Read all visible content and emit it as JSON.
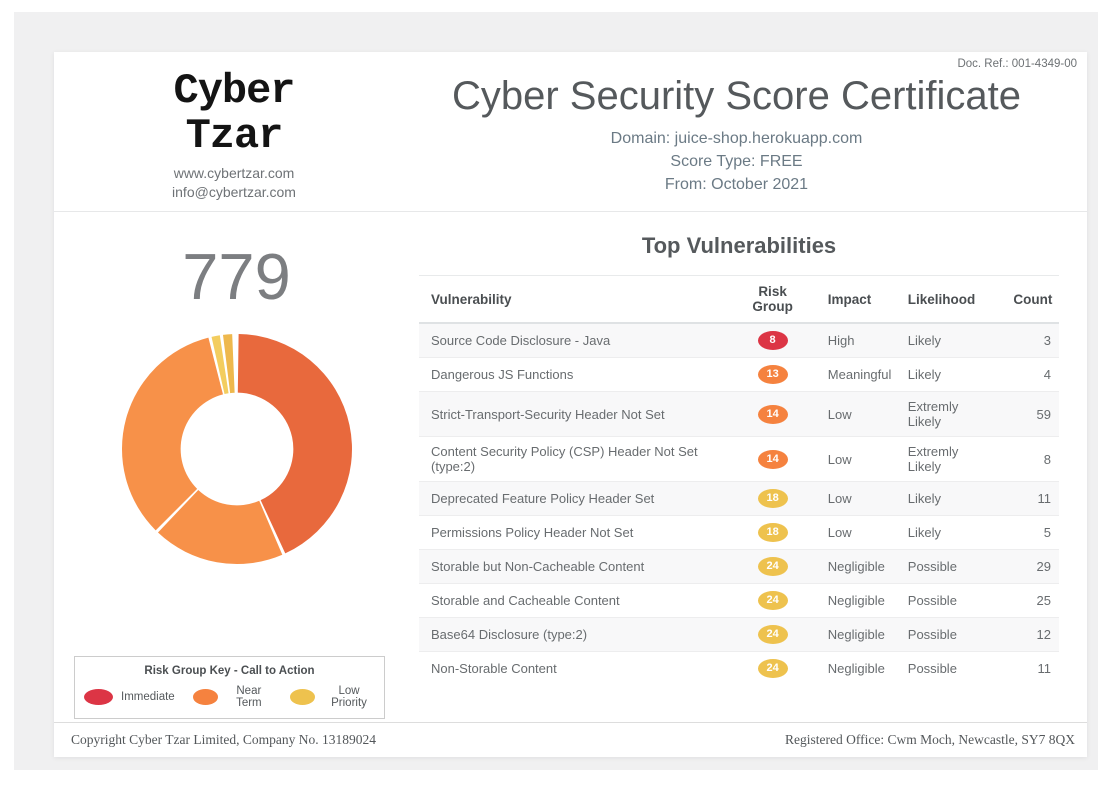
{
  "header": {
    "doc_ref": "Doc. Ref.: 001-4349-00",
    "brand": {
      "name_line1": "Cyber",
      "name_line2": "Tzar",
      "website": "www.cybertzar.com",
      "email": "info@cybertzar.com"
    },
    "title": "Cyber Security Score Certificate",
    "domain_line": "Domain: juice-shop.herokuapp.com",
    "score_type_line": "Score Type: FREE",
    "from_line": "From: October 2021"
  },
  "score": {
    "value": "779"
  },
  "vulnerabilities": {
    "title": "Top Vulnerabilities",
    "columns": [
      "Vulnerability",
      "Risk Group",
      "Impact",
      "Likelihood",
      "Count"
    ],
    "rows": [
      {
        "vulnerability": "Source Code Disclosure - Java",
        "risk_group": "8",
        "risk_color": "#dc3545",
        "impact": "High",
        "likelihood": "Likely",
        "count": "3"
      },
      {
        "vulnerability": "Dangerous JS Functions",
        "risk_group": "13",
        "risk_color": "#f5823f",
        "impact": "Meaningful",
        "likelihood": "Likely",
        "count": "4"
      },
      {
        "vulnerability": "Strict-Transport-Security Header Not Set",
        "risk_group": "14",
        "risk_color": "#f5823f",
        "impact": "Low",
        "likelihood": "Extremly Likely",
        "count": "59"
      },
      {
        "vulnerability": "Content Security Policy (CSP) Header Not Set (type:2)",
        "risk_group": "14",
        "risk_color": "#f5823f",
        "impact": "Low",
        "likelihood": "Extremly Likely",
        "count": "8"
      },
      {
        "vulnerability": "Deprecated Feature Policy Header Set",
        "risk_group": "18",
        "risk_color": "#eec24e",
        "impact": "Low",
        "likelihood": "Likely",
        "count": "11"
      },
      {
        "vulnerability": "Permissions Policy Header Not Set",
        "risk_group": "18",
        "risk_color": "#eec24e",
        "impact": "Low",
        "likelihood": "Likely",
        "count": "5"
      },
      {
        "vulnerability": "Storable but Non-Cacheable Content",
        "risk_group": "24",
        "risk_color": "#eec24e",
        "impact": "Negligible",
        "likelihood": "Possible",
        "count": "29"
      },
      {
        "vulnerability": "Storable and Cacheable Content",
        "risk_group": "24",
        "risk_color": "#eec24e",
        "impact": "Negligible",
        "likelihood": "Possible",
        "count": "25"
      },
      {
        "vulnerability": "Base64 Disclosure (type:2)",
        "risk_group": "24",
        "risk_color": "#eec24e",
        "impact": "Negligible",
        "likelihood": "Possible",
        "count": "12"
      },
      {
        "vulnerability": "Non-Storable Content",
        "risk_group": "24",
        "risk_color": "#eec24e",
        "impact": "Negligible",
        "likelihood": "Possible",
        "count": "11"
      }
    ]
  },
  "legend": {
    "title": "Risk Group Key - Call to Action",
    "items": [
      {
        "label": "Immediate",
        "color": "#dc3545"
      },
      {
        "label": "Near Term",
        "color": "#f5823f"
      },
      {
        "label": "Low Priority",
        "color": "#eec24e"
      }
    ]
  },
  "footer": {
    "left": "Copyright Cyber Tzar Limited, Company No. 13189024",
    "right": "Registered Office: Cwm Moch, Newcastle, SY7 8QX"
  },
  "chart_data": {
    "type": "pie",
    "subtype": "donut",
    "title": "Risk group distribution donut",
    "center_score": 779,
    "inner_radius_ratio": 0.49,
    "legend_position": "below-left",
    "segments": [
      {
        "name": "segment-dark-orange",
        "color": "#e8693d",
        "start_deg": 0.8,
        "end_deg": 155.2,
        "percent": 42.9
      },
      {
        "name": "segment-light-orange",
        "color": "#f79149",
        "start_deg": 156.8,
        "end_deg": 223.4,
        "percent": 18.5
      },
      {
        "name": "segment-light-orange-2",
        "color": "#f79149",
        "start_deg": 225.0,
        "end_deg": 345.6,
        "percent": 33.5
      },
      {
        "name": "segment-pale-yellow",
        "color": "#f3cd5f",
        "start_deg": 347.2,
        "end_deg": 351.4,
        "percent": 1.2
      },
      {
        "name": "segment-amber-yellow",
        "color": "#eeb84d",
        "start_deg": 353.0,
        "end_deg": 357.6,
        "percent": 1.3
      }
    ]
  }
}
